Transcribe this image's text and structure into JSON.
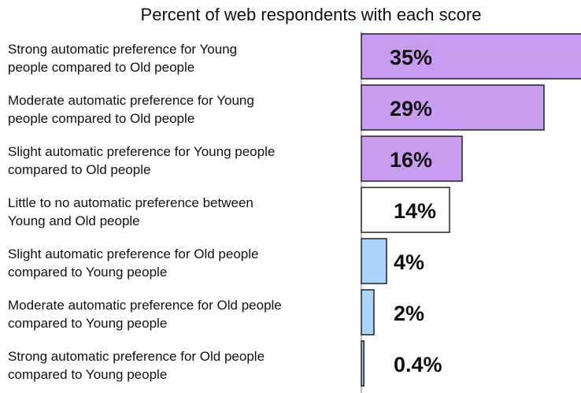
{
  "chart_data": {
    "type": "bar",
    "orientation": "horizontal",
    "title": "Percent of web respondents with each score",
    "categories": [
      [
        "Strong automatic preference for Young",
        "people compared to Old people"
      ],
      [
        "Moderate automatic preference for Young",
        "people compared to Old people"
      ],
      [
        "Slight automatic preference for Young people",
        "compared to Old people"
      ],
      [
        "Little to no automatic preference between",
        "Young and Old people"
      ],
      [
        "Slight automatic preference for Old people",
        "compared to Young people"
      ],
      [
        "Moderate automatic preference for Old people",
        "compared to Young people"
      ],
      [
        "Strong automatic preference for Old people",
        "compared to Young people"
      ]
    ],
    "values": [
      35,
      29,
      16,
      14,
      4,
      2,
      0.4
    ],
    "data_labels": [
      "35%",
      "29%",
      "16%",
      "14%",
      "4%",
      "2%",
      "0.4%"
    ],
    "bar_colors": [
      "#c89cf0",
      "#c89cf0",
      "#c89cf0",
      "#ffffff",
      "#a9d3f8",
      "#a9d3f8",
      "#a9d3f8"
    ],
    "bar_outline": "#222222",
    "xlim": [
      0,
      35
    ],
    "grid": false,
    "legend": "none",
    "xlabel": "",
    "ylabel": ""
  }
}
